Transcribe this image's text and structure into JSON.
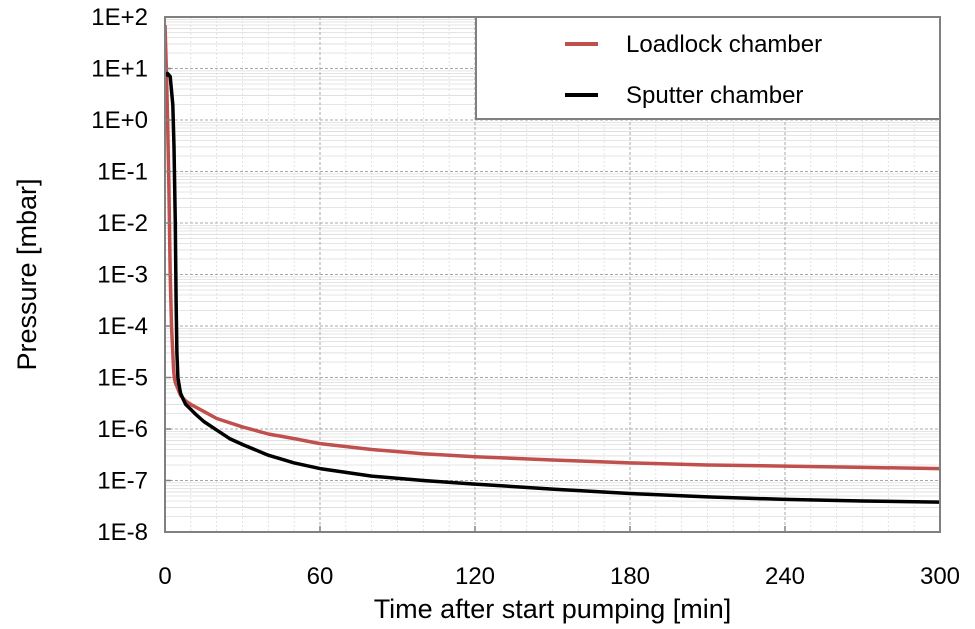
{
  "chart_data": {
    "type": "line",
    "title": "",
    "xlabel": "Time after start pumping [min]",
    "ylabel": "Pressure [mbar]",
    "xlim": [
      0,
      300
    ],
    "ylim": [
      1e-08,
      100
    ],
    "yscale": "log",
    "grid": true,
    "legend_position": "top-right",
    "x_ticks": [
      {
        "value": 0,
        "label": "0"
      },
      {
        "value": 60,
        "label": "60"
      },
      {
        "value": 120,
        "label": "120"
      },
      {
        "value": 180,
        "label": "180"
      },
      {
        "value": 240,
        "label": "240"
      },
      {
        "value": 300,
        "label": "300"
      }
    ],
    "y_ticks": [
      {
        "value": 100,
        "label": "1E+2"
      },
      {
        "value": 10,
        "label": "1E+1"
      },
      {
        "value": 1,
        "label": "1E+0"
      },
      {
        "value": 0.1,
        "label": "1E-1"
      },
      {
        "value": 0.01,
        "label": "1E-2"
      },
      {
        "value": 0.001,
        "label": "1E-3"
      },
      {
        "value": 0.0001,
        "label": "1E-4"
      },
      {
        "value": 1e-05,
        "label": "1E-5"
      },
      {
        "value": 1e-06,
        "label": "1E-6"
      },
      {
        "value": 1e-07,
        "label": "1E-7"
      },
      {
        "value": 1e-08,
        "label": "1E-8"
      }
    ],
    "series": [
      {
        "name": "Loadlock chamber",
        "color": "#c0504d",
        "x": [
          0.0,
          0.5,
          1,
          1.5,
          2,
          2.5,
          3,
          3.3,
          3.6,
          4,
          5,
          6,
          8,
          10,
          15,
          20,
          30,
          40,
          50,
          60,
          80,
          100,
          120,
          150,
          180,
          210,
          240,
          270,
          300
        ],
        "y": [
          70,
          10,
          1,
          0.05,
          0.001,
          0.0001,
          3e-05,
          1.5e-05,
          1e-05,
          8e-06,
          6e-06,
          4.5e-06,
          3.5e-06,
          3e-06,
          2.2e-06,
          1.6e-06,
          1.1e-06,
          8e-07,
          6.5e-07,
          5.2e-07,
          4e-07,
          3.3e-07,
          2.9e-07,
          2.5e-07,
          2.2e-07,
          2e-07,
          1.9e-07,
          1.8e-07,
          1.7e-07
        ]
      },
      {
        "name": "Sputter chamber",
        "color": "#000000",
        "x": [
          0.5,
          1,
          2,
          3,
          3.5,
          4,
          4.3,
          4.6,
          5,
          5.5,
          6,
          7,
          8,
          10,
          12,
          15,
          20,
          25,
          30,
          40,
          50,
          60,
          80,
          100,
          120,
          150,
          180,
          210,
          240,
          270,
          300
        ],
        "y": [
          7,
          8,
          7,
          2,
          0.3,
          0.01,
          0.0003,
          3e-05,
          1e-05,
          7e-06,
          5e-06,
          3.8e-06,
          3e-06,
          2.4e-06,
          1.9e-06,
          1.4e-06,
          9.5e-07,
          6.5e-07,
          5e-07,
          3.1e-07,
          2.2e-07,
          1.7e-07,
          1.22e-07,
          1e-07,
          8.5e-08,
          6.8e-08,
          5.6e-08,
          4.8e-08,
          4.3e-08,
          4e-08,
          3.8e-08
        ]
      }
    ]
  }
}
